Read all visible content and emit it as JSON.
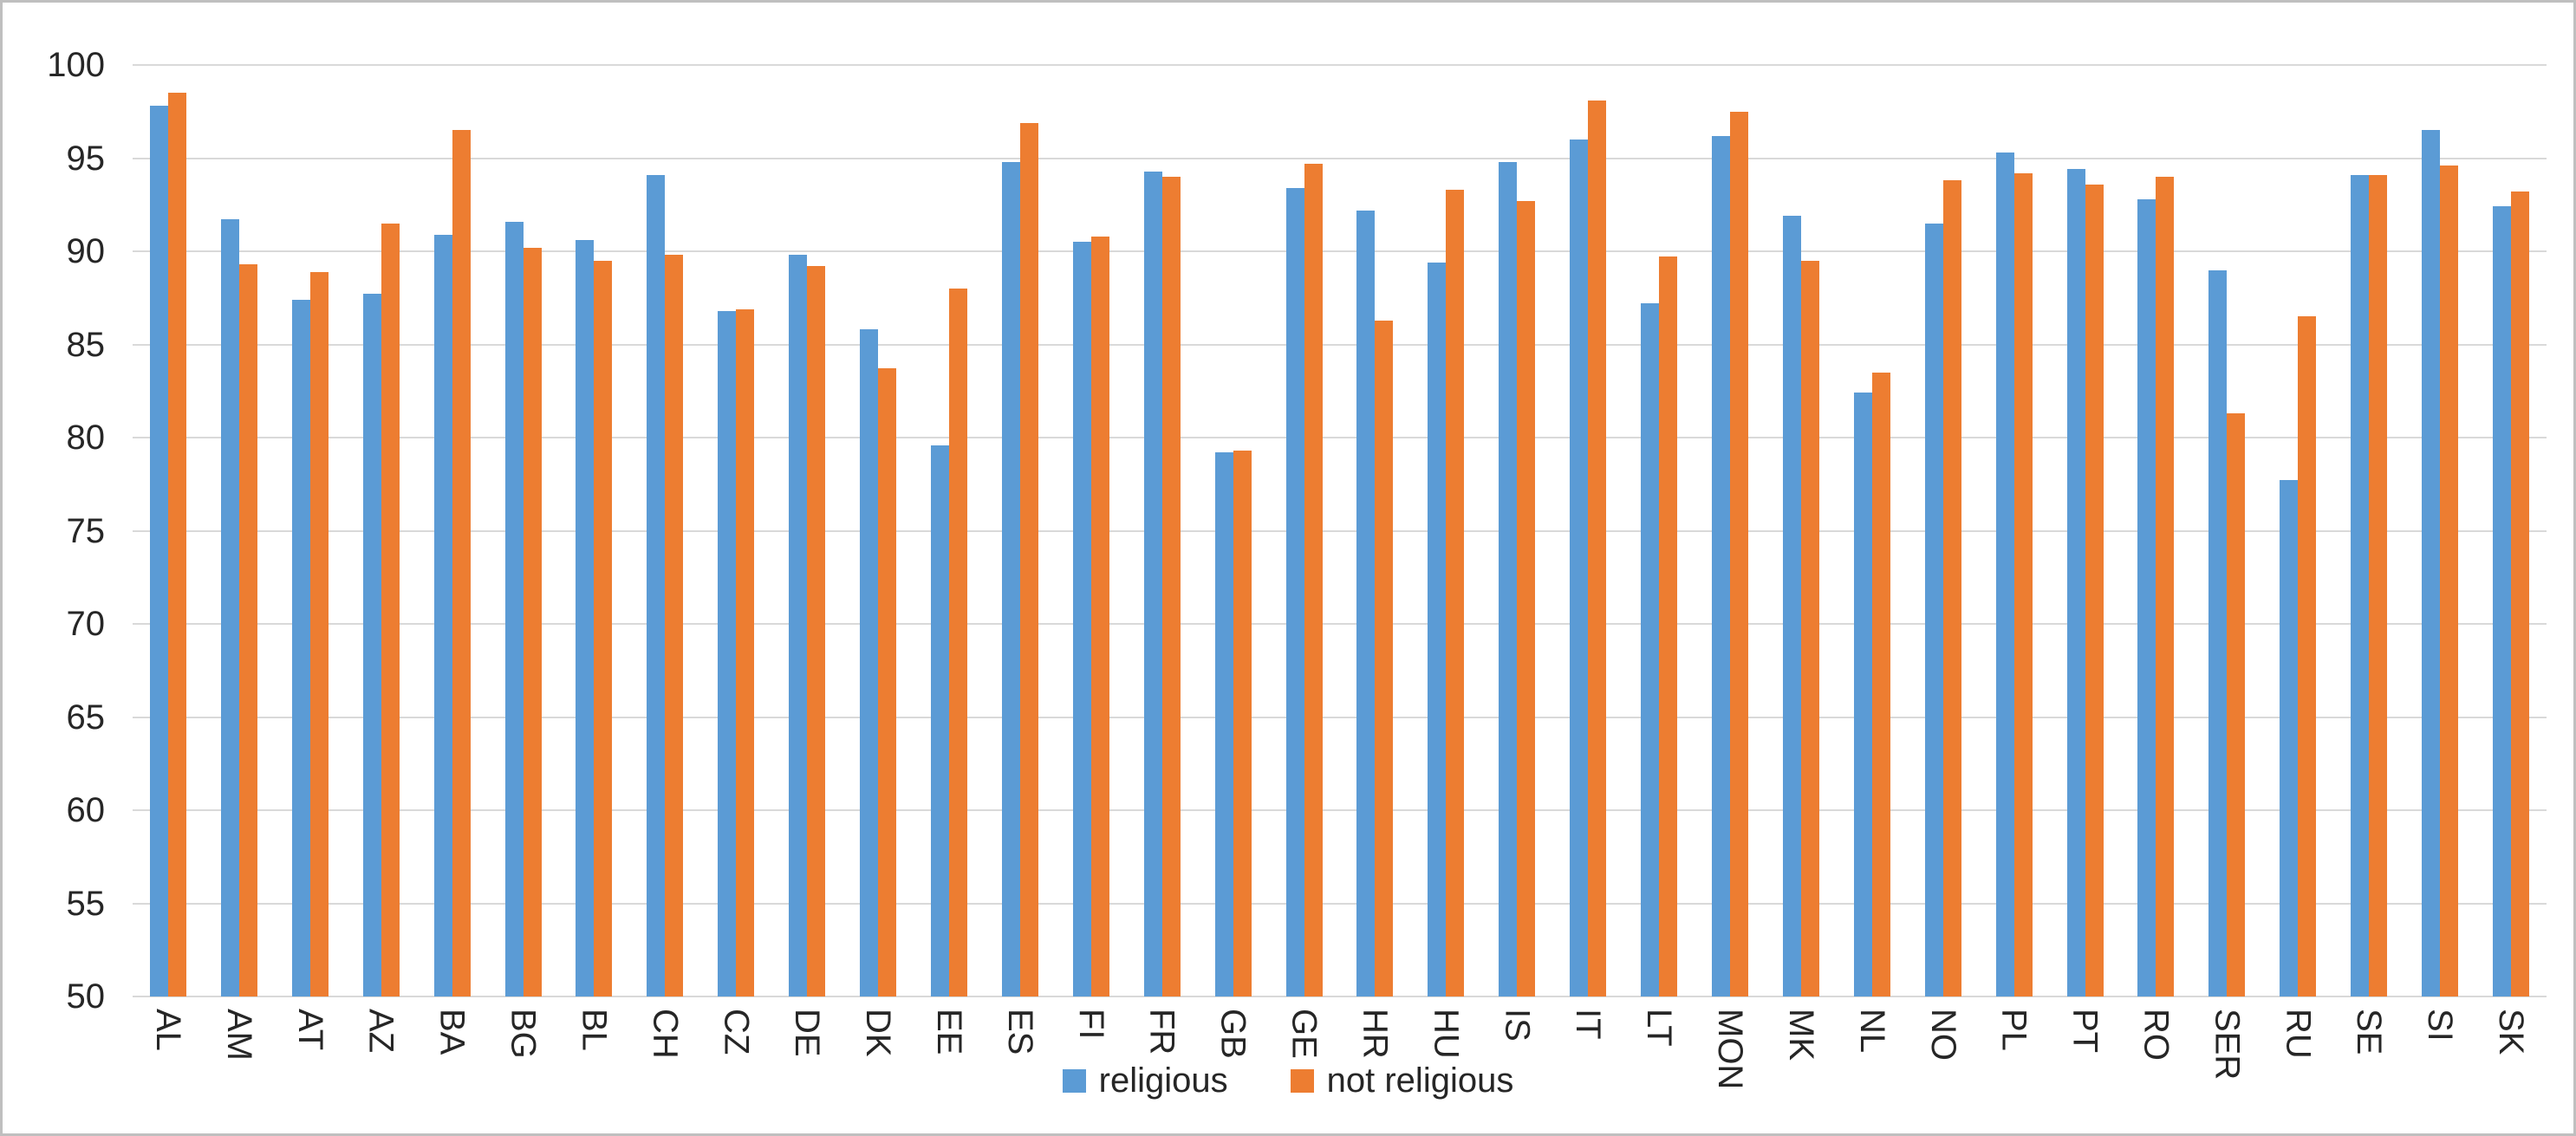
{
  "frame": {
    "background_color": "#ffffff",
    "border_color": "#bfbfbf",
    "gridline_color": "#d9d9d9",
    "text_color": "#262626"
  },
  "chart_data": {
    "type": "bar",
    "title": "",
    "xlabel": "",
    "ylabel": "",
    "ylim": [
      50,
      100
    ],
    "ytick_step": 5,
    "ytick_labels": [
      "100",
      "95",
      "90",
      "85",
      "80",
      "75",
      "70",
      "65",
      "60",
      "55",
      "50"
    ],
    "grid": "horizontal",
    "legend_position": "bottom",
    "categories": [
      "AL",
      "AM",
      "AT",
      "AZ",
      "BA",
      "BG",
      "BL",
      "CH",
      "CZ",
      "DE",
      "DK",
      "EE",
      "ES",
      "FI",
      "FR",
      "GB",
      "GE",
      "HR",
      "HU",
      "IS",
      "IT",
      "LT",
      "MON",
      "MK",
      "NL",
      "NO",
      "PL",
      "PT",
      "RO",
      "SER",
      "RU",
      "SE",
      "SI",
      "SK"
    ],
    "series": [
      {
        "name": "religious",
        "color": "#5b9bd5",
        "values": [
          97.8,
          91.7,
          87.4,
          87.7,
          90.9,
          91.6,
          90.6,
          94.1,
          86.8,
          89.8,
          85.8,
          79.6,
          94.8,
          90.5,
          94.3,
          79.2,
          93.4,
          92.2,
          89.4,
          94.8,
          96.0,
          87.2,
          96.2,
          91.9,
          82.4,
          91.5,
          95.3,
          94.4,
          92.8,
          89.0,
          77.7,
          94.1,
          96.5,
          92.4
        ]
      },
      {
        "name": "not religious",
        "color": "#ed7d31",
        "values": [
          98.5,
          89.3,
          88.9,
          91.5,
          96.5,
          90.2,
          89.5,
          89.8,
          86.9,
          89.2,
          83.7,
          88.0,
          96.9,
          90.8,
          94.0,
          79.3,
          94.7,
          86.3,
          93.3,
          92.7,
          98.1,
          89.7,
          97.5,
          89.5,
          83.5,
          93.8,
          94.2,
          93.6,
          94.0,
          81.3,
          86.5,
          94.1,
          94.6,
          93.2
        ]
      }
    ]
  }
}
